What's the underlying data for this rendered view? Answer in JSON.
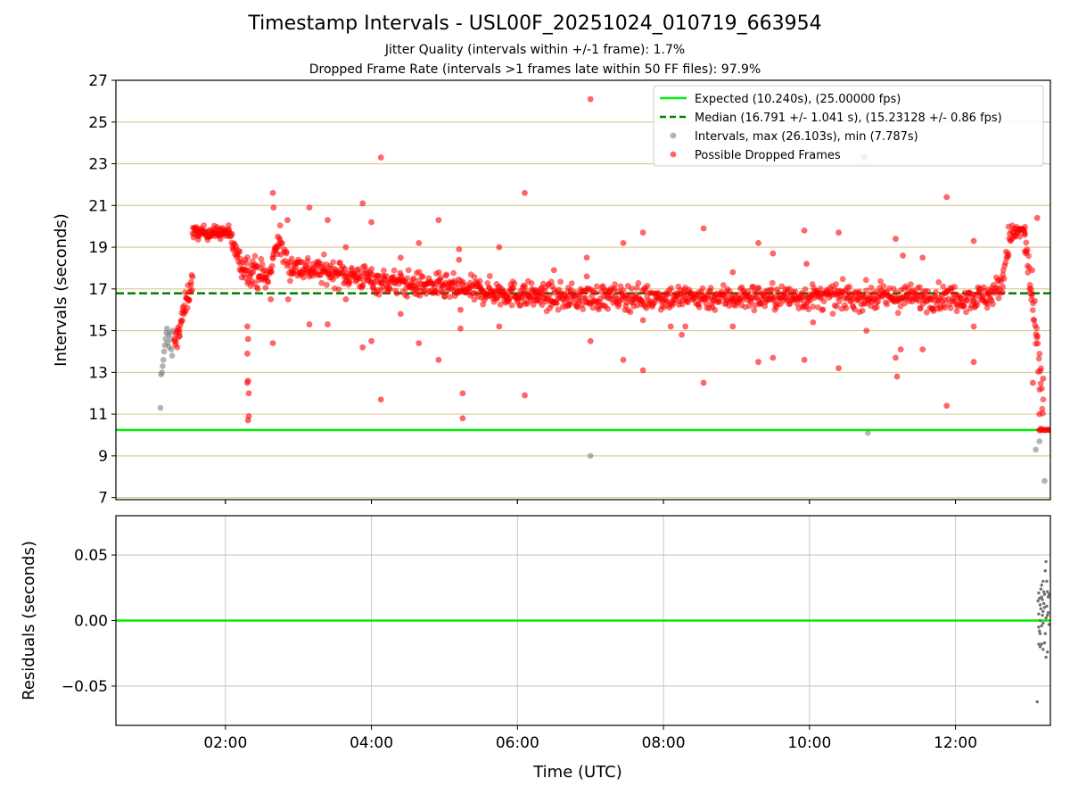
{
  "chart_data": [
    {
      "type": "scatter",
      "title": "Timestamp Intervals - USL00F_20251024_010719_663954",
      "subtitle_lines": [
        "Jitter Quality (intervals within +/-1 frame): 1.7%",
        "Dropped Frame Rate (intervals >1 frames late within 50 FF files): 97.9%"
      ],
      "ylabel": "Intervals (seconds)",
      "xlabel": "",
      "xlim": [
        0.5,
        13.3
      ],
      "ylim": [
        6.9,
        27
      ],
      "yticks": [
        7,
        9,
        11,
        13,
        15,
        17,
        19,
        21,
        23,
        25,
        27
      ],
      "xticks": [
        2,
        4,
        6,
        8,
        10,
        12
      ],
      "xtick_labels": [
        "02:00",
        "04:00",
        "06:00",
        "08:00",
        "10:00",
        "12:00"
      ],
      "grid": "horizontal",
      "legend_position": "top-right",
      "lines": [
        {
          "name": "Expected (10.240s), (25.00000 fps)",
          "y": 10.24,
          "color": "#00ee00",
          "style": "solid"
        },
        {
          "name": "Median (16.791 +/- 1.041 s), (15.23128 +/- 0.86 fps)",
          "y": 16.791,
          "color": "#008000",
          "style": "dashed"
        }
      ],
      "series": [
        {
          "name": "Intervals, max (26.103s), min (7.787s)",
          "color": "#808080",
          "points": [
            [
              1.11,
              11.3
            ],
            [
              1.12,
              12.9
            ],
            [
              1.13,
              13.0
            ],
            [
              1.14,
              13.3
            ],
            [
              1.15,
              13.6
            ],
            [
              1.16,
              14.0
            ],
            [
              1.17,
              14.3
            ],
            [
              1.18,
              14.6
            ],
            [
              1.19,
              14.9
            ],
            [
              1.2,
              15.1
            ],
            [
              1.21,
              14.4
            ],
            [
              1.22,
              14.8
            ],
            [
              1.23,
              14.2
            ],
            [
              1.24,
              14.9
            ],
            [
              1.25,
              14.6
            ],
            [
              1.26,
              14.1
            ],
            [
              1.27,
              13.8
            ],
            [
              1.28,
              15.0
            ],
            [
              7.0,
              9.0
            ],
            [
              10.8,
              10.1
            ],
            [
              13.1,
              9.3
            ],
            [
              13.15,
              9.7
            ],
            [
              13.22,
              7.8
            ]
          ]
        },
        {
          "name": "Possible Dropped Frames",
          "color": "#ff0000",
          "segments": [
            {
              "x_start": 1.3,
              "x_end": 1.55,
              "y_start": 14.2,
              "y_end": 17.5,
              "spread": 0.3,
              "n": 40
            },
            {
              "x_start": 1.55,
              "x_end": 2.05,
              "y_start": 19.7,
              "y_end": 19.7,
              "spread": 0.15,
              "n": 80
            },
            {
              "x_start": 2.05,
              "x_end": 2.2,
              "y_start": 19.6,
              "y_end": 18.3,
              "spread": 0.25,
              "n": 20
            },
            {
              "x_start": 2.2,
              "x_end": 2.55,
              "y_start": 18.2,
              "y_end": 17.6,
              "spread": 0.35,
              "n": 50
            },
            {
              "x_start": 2.55,
              "x_end": 2.65,
              "y_start": 17.3,
              "y_end": 18.0,
              "spread": 0.4,
              "n": 12
            },
            {
              "x_start": 2.65,
              "x_end": 2.75,
              "y_start": 18.8,
              "y_end": 19.4,
              "spread": 0.3,
              "n": 14
            },
            {
              "x_start": 2.75,
              "x_end": 2.9,
              "y_start": 19.0,
              "y_end": 18.0,
              "spread": 0.3,
              "n": 16
            },
            {
              "x_start": 2.9,
              "x_end": 4.0,
              "y_start": 18.1,
              "y_end": 17.5,
              "spread": 0.3,
              "n": 140
            },
            {
              "x_start": 4.0,
              "x_end": 5.5,
              "y_start": 17.4,
              "y_end": 16.9,
              "spread": 0.3,
              "n": 190
            },
            {
              "x_start": 5.5,
              "x_end": 6.5,
              "y_start": 16.9,
              "y_end": 16.6,
              "spread": 0.3,
              "n": 140
            },
            {
              "x_start": 6.5,
              "x_end": 12.45,
              "y_start": 16.6,
              "y_end": 16.6,
              "spread": 0.3,
              "n": 700
            },
            {
              "x_start": 12.45,
              "x_end": 12.65,
              "y_start": 16.7,
              "y_end": 17.2,
              "spread": 0.3,
              "n": 24
            },
            {
              "x_start": 12.65,
              "x_end": 12.73,
              "y_start": 17.8,
              "y_end": 18.8,
              "spread": 0.3,
              "n": 10
            },
            {
              "x_start": 12.73,
              "x_end": 12.95,
              "y_start": 19.6,
              "y_end": 19.8,
              "spread": 0.2,
              "n": 30
            },
            {
              "x_start": 12.95,
              "x_end": 13.2,
              "y_start": 19.5,
              "y_end": 11.5,
              "spread": 0.5,
              "n": 40
            },
            {
              "x_start": 13.15,
              "x_end": 13.32,
              "y_start": 10.24,
              "y_end": 10.24,
              "spread": 0.02,
              "n": 12
            }
          ],
          "outliers": [
            [
              2.3,
              15.2
            ],
            [
              2.31,
              14.6
            ],
            [
              2.3,
              13.9
            ],
            [
              2.31,
              12.6
            ],
            [
              2.3,
              12.5
            ],
            [
              2.32,
              12.0
            ],
            [
              2.32,
              10.9
            ],
            [
              2.31,
              10.7
            ],
            [
              2.65,
              21.6
            ],
            [
              2.66,
              20.9
            ],
            [
              2.62,
              16.5
            ],
            [
              2.65,
              14.4
            ],
            [
              2.85,
              20.3
            ],
            [
              2.86,
              16.5
            ],
            [
              3.15,
              20.9
            ],
            [
              3.15,
              15.3
            ],
            [
              3.4,
              20.3
            ],
            [
              3.4,
              15.3
            ],
            [
              3.65,
              19.0
            ],
            [
              3.65,
              16.5
            ],
            [
              3.88,
              21.1
            ],
            [
              3.88,
              14.2
            ],
            [
              4.0,
              20.2
            ],
            [
              4.0,
              14.5
            ],
            [
              4.13,
              23.3
            ],
            [
              4.13,
              11.7
            ],
            [
              4.4,
              18.5
            ],
            [
              4.4,
              15.8
            ],
            [
              4.65,
              19.2
            ],
            [
              4.65,
              14.4
            ],
            [
              4.92,
              20.3
            ],
            [
              4.92,
              13.6
            ],
            [
              5.2,
              18.9
            ],
            [
              5.2,
              18.4
            ],
            [
              5.25,
              12.0
            ],
            [
              5.25,
              10.8
            ],
            [
              5.22,
              16.0
            ],
            [
              5.22,
              15.1
            ],
            [
              5.75,
              19.0
            ],
            [
              5.75,
              15.2
            ],
            [
              6.1,
              21.6
            ],
            [
              6.1,
              11.9
            ],
            [
              6.5,
              17.9
            ],
            [
              6.7,
              16.2
            ],
            [
              6.95,
              17.6
            ],
            [
              6.95,
              18.5
            ],
            [
              7.0,
              26.1
            ],
            [
              7.0,
              14.5
            ],
            [
              7.45,
              19.2
            ],
            [
              7.45,
              13.6
            ],
            [
              7.72,
              19.7
            ],
            [
              7.72,
              15.5
            ],
            [
              7.72,
              13.1
            ],
            [
              8.1,
              15.2
            ],
            [
              8.25,
              14.8
            ],
            [
              8.3,
              15.2
            ],
            [
              8.55,
              19.9
            ],
            [
              8.55,
              12.5
            ],
            [
              8.95,
              17.8
            ],
            [
              8.95,
              15.2
            ],
            [
              9.3,
              19.2
            ],
            [
              9.3,
              13.5
            ],
            [
              9.5,
              18.7
            ],
            [
              9.5,
              13.7
            ],
            [
              9.93,
              19.8
            ],
            [
              9.93,
              13.6
            ],
            [
              9.96,
              18.2
            ],
            [
              10.05,
              15.4
            ],
            [
              10.4,
              19.7
            ],
            [
              10.4,
              13.2
            ],
            [
              10.75,
              23.3
            ],
            [
              10.78,
              15.0
            ],
            [
              11.18,
              19.4
            ],
            [
              11.18,
              13.7
            ],
            [
              11.2,
              12.8
            ],
            [
              11.25,
              14.1
            ],
            [
              11.28,
              18.6
            ],
            [
              11.55,
              18.5
            ],
            [
              11.55,
              14.1
            ],
            [
              11.88,
              21.4
            ],
            [
              11.88,
              11.4
            ],
            [
              12.25,
              19.3
            ],
            [
              12.25,
              13.5
            ],
            [
              12.25,
              15.2
            ],
            [
              12.95,
              18.8
            ],
            [
              13.05,
              17.9
            ],
            [
              13.06,
              12.5
            ],
            [
              13.12,
              20.4
            ],
            [
              13.2,
              12.7
            ],
            [
              13.15,
              11.0
            ],
            [
              13.17,
              10.3
            ]
          ]
        }
      ]
    },
    {
      "type": "scatter",
      "title": "",
      "ylabel": "Residuals (seconds)",
      "xlabel": "Time (UTC)",
      "xlim": [
        0.5,
        13.3
      ],
      "ylim": [
        -0.08,
        0.08
      ],
      "yticks": [
        -0.05,
        0.0,
        0.05
      ],
      "ytick_labels": [
        "−0.05",
        "0.00",
        "0.05"
      ],
      "xticks": [
        2,
        4,
        6,
        8,
        10,
        12
      ],
      "xtick_labels": [
        "02:00",
        "04:00",
        "06:00",
        "08:00",
        "10:00",
        "12:00"
      ],
      "grid": "both",
      "lines": [
        {
          "name": "",
          "y": 0.0,
          "color": "#00ee00",
          "style": "solid"
        }
      ],
      "series": [
        {
          "name": "",
          "color": "#707070",
          "points": [
            [
              13.12,
              -0.062
            ],
            [
              13.14,
              0.021
            ],
            [
              13.15,
              0.017
            ],
            [
              13.16,
              0.012
            ],
            [
              13.17,
              0.024
            ],
            [
              13.18,
              0.018
            ],
            [
              13.19,
              0.004
            ],
            [
              13.2,
              -0.002
            ],
            [
              13.21,
              0.022
            ],
            [
              13.22,
              0.02
            ],
            [
              13.23,
              0.038
            ],
            [
              13.24,
              0.045
            ],
            [
              13.25,
              0.03
            ],
            [
              13.26,
              0.022
            ],
            [
              13.27,
              0.018
            ],
            [
              13.28,
              0.02
            ],
            [
              13.14,
              -0.018
            ],
            [
              13.16,
              -0.02
            ],
            [
              13.18,
              -0.018
            ],
            [
              13.2,
              -0.022
            ],
            [
              13.22,
              -0.017
            ],
            [
              13.24,
              -0.028
            ],
            [
              13.26,
              -0.024
            ],
            [
              13.14,
              0.005
            ],
            [
              13.16,
              0.0
            ],
            [
              13.18,
              -0.004
            ],
            [
              13.2,
              0.007
            ],
            [
              13.22,
              0.01
            ],
            [
              13.24,
              0.002
            ],
            [
              13.26,
              0.004
            ],
            [
              13.13,
              0.015
            ],
            [
              13.15,
              -0.008
            ],
            [
              13.17,
              0.009
            ],
            [
              13.19,
              0.016
            ],
            [
              13.21,
              0.013
            ],
            [
              13.23,
              -0.01
            ],
            [
              13.25,
              0.011
            ],
            [
              13.27,
              0.006
            ],
            [
              13.28,
              -0.003
            ],
            [
              13.2,
              0.03
            ],
            [
              13.18,
              0.027
            ],
            [
              13.16,
              -0.01
            ],
            [
              13.14,
              -0.005
            ]
          ]
        }
      ]
    }
  ]
}
